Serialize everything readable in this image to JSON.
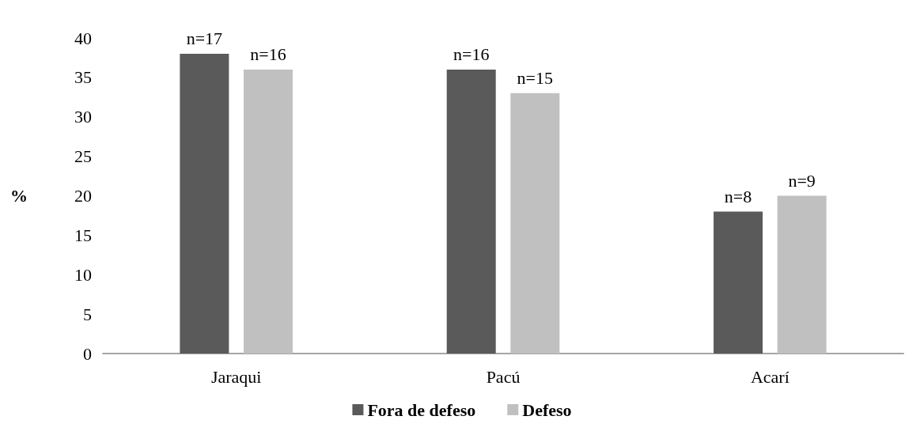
{
  "chart_data": {
    "type": "bar",
    "ylabel": "%",
    "categories": [
      "Jaraqui",
      "Pacú",
      "Acarí"
    ],
    "series": [
      {
        "name": "Fora de defeso",
        "color": "#5a5a5a",
        "values": [
          38,
          36,
          18
        ]
      },
      {
        "name": "Defeso",
        "color": "#c0c0c0",
        "values": [
          36,
          33,
          20
        ]
      }
    ],
    "annotations": [
      "n=17",
      "n=16",
      "n=16",
      "n=15",
      "n=8",
      "n=9"
    ],
    "ylim": [
      0,
      40
    ],
    "yticks": [
      0,
      5,
      10,
      15,
      20,
      25,
      30,
      35,
      40
    ],
    "grid": false,
    "legend": "bottom"
  }
}
